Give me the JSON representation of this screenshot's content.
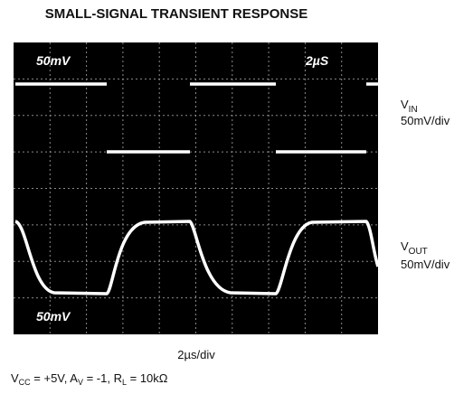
{
  "title": "SMALL-SIGNAL TRANSIENT RESPONSE",
  "screen_labels": [
    "50mV",
    "2µS",
    "50mV"
  ],
  "traces": [
    {
      "name": {
        "main": "V",
        "sub": "IN"
      },
      "scale": "50mV/div"
    },
    {
      "name": {
        "main": "V",
        "sub": "OUT"
      },
      "scale": "50mV/div"
    }
  ],
  "x_label": "2µs/div",
  "conditions": [
    {
      "main": "V",
      "sub": "CC",
      "rest": " = +5V, "
    },
    {
      "main": "A",
      "sub": "V",
      "rest": " = -1, "
    },
    {
      "main": "R",
      "sub": "L",
      "rest": " = 10kΩ"
    }
  ]
}
